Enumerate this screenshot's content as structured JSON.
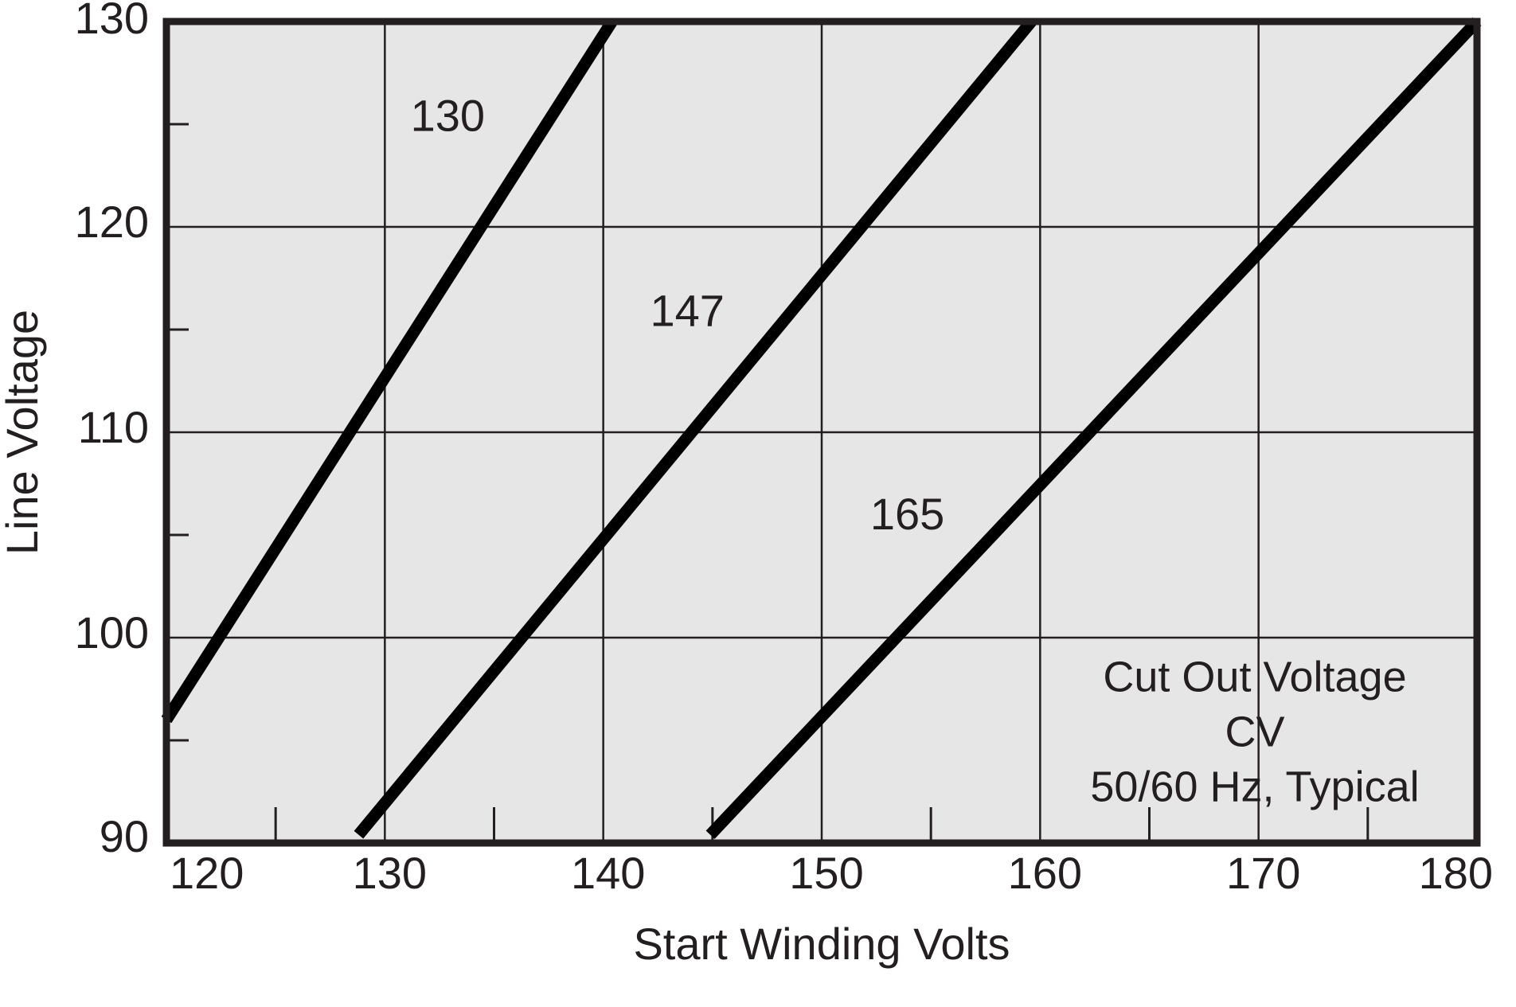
{
  "chart_data": {
    "type": "line",
    "xlabel": "Start Winding Volts",
    "ylabel": "Line Voltage",
    "xlim": [
      120,
      180
    ],
    "ylim": [
      90,
      130
    ],
    "xticks": [
      120,
      130,
      140,
      150,
      160,
      170,
      180
    ],
    "yticks": [
      90,
      100,
      110,
      120,
      130
    ],
    "xminorticks": [
      125,
      135,
      145,
      155,
      165,
      175
    ],
    "yminorticks": [
      95,
      105,
      115,
      125
    ],
    "grid": true,
    "series": [
      {
        "name": "130",
        "color": "#000000",
        "x": [
          120,
          140.4
        ],
        "values": [
          96,
          130
        ]
      },
      {
        "name": "147",
        "color": "#000000",
        "x": [
          128.8,
          159.6
        ],
        "values": [
          90.4,
          130
        ]
      },
      {
        "name": "165",
        "color": "#000000",
        "x": [
          144.9,
          180
        ],
        "values": [
          90.4,
          130
        ]
      }
    ],
    "annotation": [
      "Cut Out Voltage",
      "CV",
      "50/60 Hz, Typical"
    ]
  }
}
